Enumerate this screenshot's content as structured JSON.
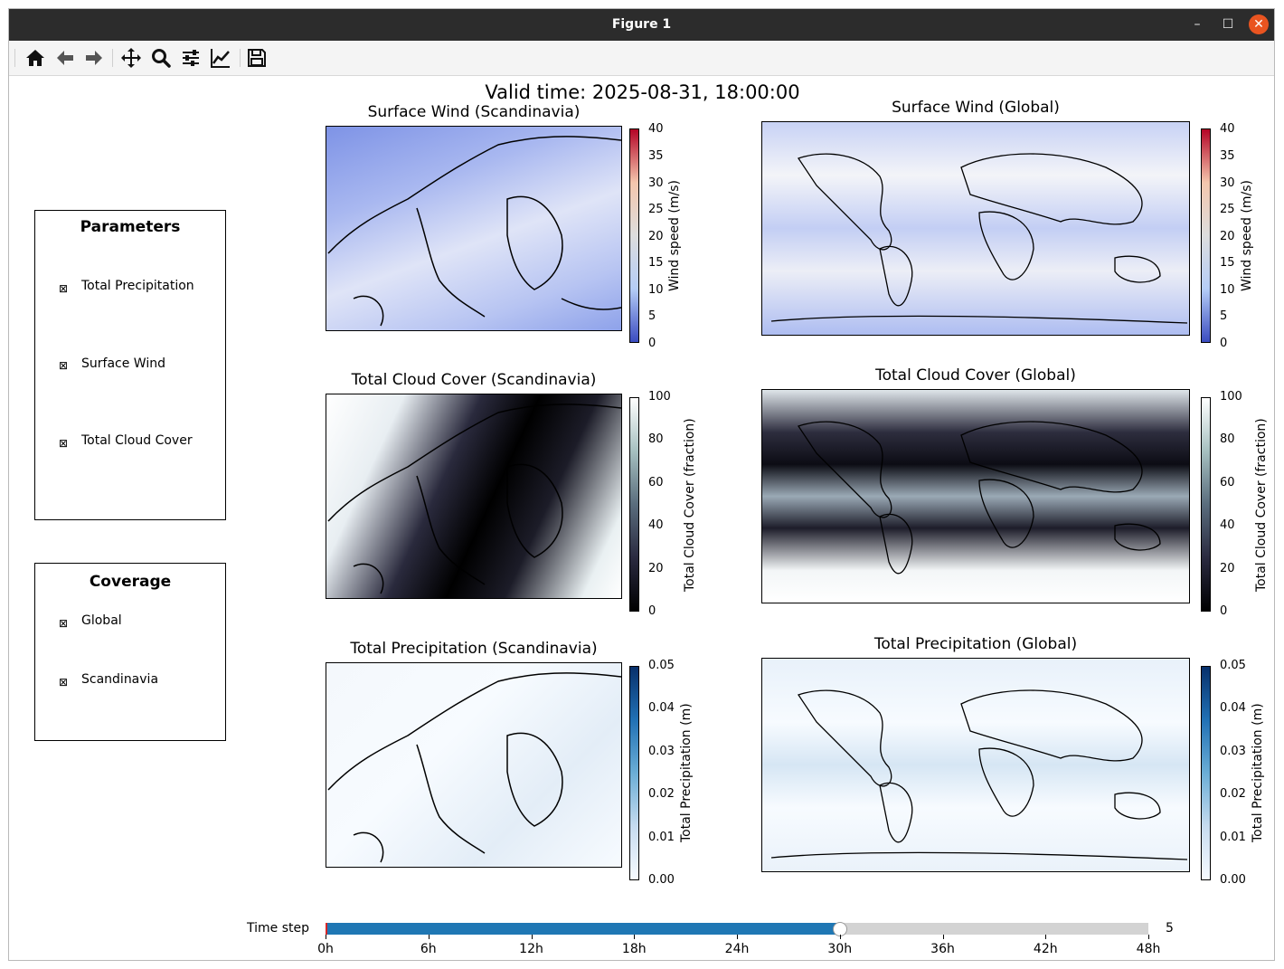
{
  "window": {
    "title": "Figure 1"
  },
  "toolbar": [
    {
      "name": "home-icon",
      "tooltip": "Home"
    },
    {
      "name": "back-icon",
      "tooltip": "Back"
    },
    {
      "name": "forward-icon",
      "tooltip": "Forward"
    },
    {
      "name": "pan-icon",
      "tooltip": "Pan"
    },
    {
      "name": "zoom-icon",
      "tooltip": "Zoom"
    },
    {
      "name": "subplots-icon",
      "tooltip": "Subplots"
    },
    {
      "name": "axes-icon",
      "tooltip": "Customize"
    },
    {
      "name": "save-icon",
      "tooltip": "Save"
    }
  ],
  "figure": {
    "suptitle": "Valid time: 2025-08-31, 18:00:00"
  },
  "parameters": {
    "title": "Parameters",
    "items": [
      "Total Precipitation",
      "Surface Wind",
      "Total Cloud Cover"
    ]
  },
  "coverage": {
    "title": "Coverage",
    "items": [
      "Global",
      "Scandinavia"
    ]
  },
  "panels": {
    "wind_scand": {
      "title": "Surface Wind (Scandinavia)"
    },
    "wind_global": {
      "title": "Surface Wind (Global)"
    },
    "cloud_scand": {
      "title": "Total Cloud Cover (Scandinavia)"
    },
    "cloud_global": {
      "title": "Total Cloud Cover (Global)"
    },
    "precip_scand": {
      "title": "Total Precipitation (Scandinavia)"
    },
    "precip_global": {
      "title": "Total Precipitation (Global)"
    }
  },
  "colorbars": {
    "wind": {
      "label": "Wind speed (m/s)",
      "ticks": [
        "0",
        "5",
        "10",
        "15",
        "20",
        "25",
        "30",
        "35",
        "40"
      ],
      "colormap": "coolwarm",
      "colors": [
        "#3b4cc0",
        "#b5cdf7",
        "#dddddd",
        "#f4c6ad",
        "#b40426"
      ]
    },
    "cloud": {
      "label": "Total Cloud Cover (fraction)",
      "ticks": [
        "0",
        "20",
        "40",
        "60",
        "80",
        "100"
      ],
      "colormap": "bone",
      "colors": [
        "#000000",
        "#2a2a40",
        "#5a6d7d",
        "#a6c0c0",
        "#ffffff"
      ]
    },
    "precip": {
      "label": "Total Precipitation (m)",
      "ticks": [
        "0.00",
        "0.01",
        "0.02",
        "0.03",
        "0.04",
        "0.05"
      ],
      "colormap": "Blues",
      "colors": [
        "#f7fbff",
        "#c6dbef",
        "#6baed6",
        "#2171b5",
        "#08306b"
      ]
    }
  },
  "slider": {
    "label": "Time step",
    "value_text": "5",
    "fraction": 0.625,
    "fill_color": "#1f77b4",
    "ticks": [
      "0h",
      "6h",
      "12h",
      "18h",
      "24h",
      "30h",
      "36h",
      "42h",
      "48h"
    ]
  }
}
